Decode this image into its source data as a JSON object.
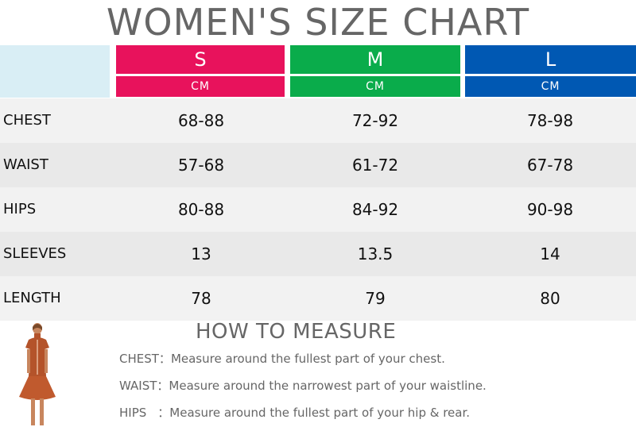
{
  "title": "WOMEN'S SIZE CHART",
  "sizes": [
    {
      "label": "S",
      "unit": "CM",
      "color": "#e8125c"
    },
    {
      "label": "M",
      "unit": "CM",
      "color": "#0aac4b"
    },
    {
      "label": "L",
      "unit": "CM",
      "color": "#0058b3"
    }
  ],
  "rows": [
    {
      "label": "CHEST",
      "values": [
        "68-88",
        "72-92",
        "78-98"
      ]
    },
    {
      "label": "WAIST",
      "values": [
        "57-68",
        "61-72",
        "67-78"
      ]
    },
    {
      "label": "HIPS",
      "values": [
        "80-88",
        "84-92",
        "90-98"
      ]
    },
    {
      "label": "SLEEVES",
      "values": [
        "13",
        "13.5",
        "14"
      ]
    },
    {
      "label": "LENGTH",
      "values": [
        "78",
        "79",
        "80"
      ]
    }
  ],
  "how_to_measure": {
    "heading": "HOW TO MEASURE",
    "items": [
      {
        "label": "CHEST",
        "separator": "：",
        "text": "Measure around the fullest part of your chest."
      },
      {
        "label": "WAIST",
        "separator": "：",
        "text": "Measure around the narrowest part of your waistline."
      },
      {
        "label": "HIPS",
        "separator": "：",
        "text": "Measure around the fullest part of your hip & rear."
      }
    ]
  }
}
